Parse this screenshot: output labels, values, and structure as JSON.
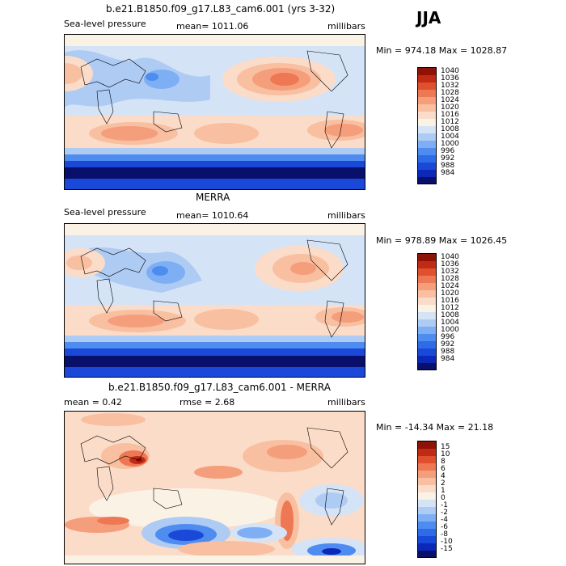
{
  "season": "JJA",
  "colors": {
    "abs": [
      "#08106b",
      "#0b28b8",
      "#1a49d9",
      "#2e6be6",
      "#4f8cf0",
      "#7eaff5",
      "#aecbf4",
      "#d5e3f7",
      "#fbf2e6",
      "#fbdcc8",
      "#f9bfa1",
      "#f59e7c",
      "#ee7853",
      "#e0502f",
      "#c12b15",
      "#8e1205"
    ],
    "diff": [
      "#08106b",
      "#0b28b8",
      "#1a49d9",
      "#2e6be6",
      "#4f8cf0",
      "#7eaff5",
      "#aecbf4",
      "#d5e3f7",
      "#fbf2e6",
      "#fbdcc8",
      "#f9bfa1",
      "#f59e7c",
      "#ee7853",
      "#e0502f",
      "#c12b15",
      "#8e1205"
    ]
  },
  "panels": [
    {
      "title": "b.e21.B1850.f09_g17.L83_cam6.001 (yrs 3-32)",
      "left": "Sea-level pressure",
      "center": "mean= 1011.06",
      "right": "millibars",
      "minmax": "Min = 974.18 Max = 1028.87"
    },
    {
      "title": "MERRA",
      "left": "Sea-level pressure",
      "center": "mean= 1010.64",
      "right": "millibars",
      "minmax": "Min = 978.89 Max = 1026.45"
    },
    {
      "title": "b.e21.B1850.f09_g17.L83_cam6.001 - MERRA",
      "left": "mean =    0.42",
      "center": "rmse =    2.68",
      "right": "millibars",
      "minmax": "Min = -14.34 Max =  21.18"
    }
  ],
  "chart_data": [
    {
      "type": "heatmap",
      "title": "b.e21.B1850.f09_g17.L83_cam6.001 (yrs 3-32)",
      "variable": "Sea-level pressure",
      "units": "millibars",
      "mean": 1011.06,
      "min": 974.18,
      "max": 1028.87,
      "colorbar_levels": [
        "1040",
        "1036",
        "1032",
        "1028",
        "1024",
        "1020",
        "1016",
        "1012",
        "1008",
        "1004",
        "1000",
        "996",
        "992",
        "988",
        "984"
      ]
    },
    {
      "type": "heatmap",
      "title": "MERRA",
      "variable": "Sea-level pressure",
      "units": "millibars",
      "mean": 1010.64,
      "min": 978.89,
      "max": 1026.45,
      "colorbar_levels": [
        "1040",
        "1036",
        "1032",
        "1028",
        "1024",
        "1020",
        "1016",
        "1012",
        "1008",
        "1004",
        "1000",
        "996",
        "992",
        "988",
        "984"
      ]
    },
    {
      "type": "heatmap",
      "title": "b.e21.B1850.f09_g17.L83_cam6.001 - MERRA",
      "units": "millibars",
      "mean": 0.42,
      "rmse": 2.68,
      "min": -14.34,
      "max": 21.18,
      "colorbar_levels": [
        "15",
        "10",
        "8",
        "6",
        "4",
        "2",
        "1",
        "0",
        "-1",
        "-2",
        "-4",
        "-6",
        "-8",
        "-10",
        "-15"
      ]
    }
  ]
}
